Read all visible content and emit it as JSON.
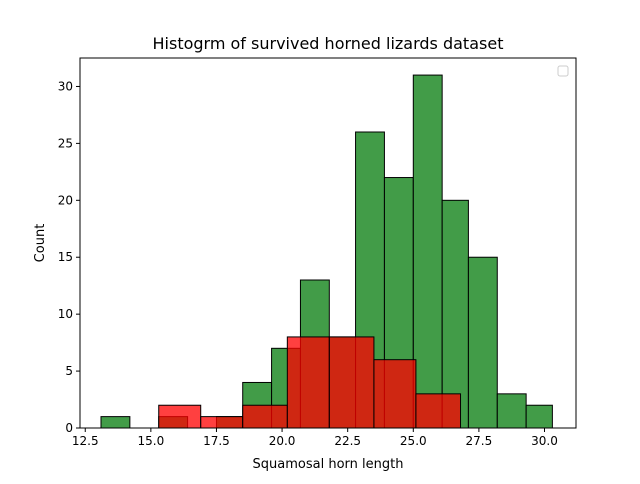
{
  "chart_data": {
    "type": "bar",
    "title": "Histogrm of survived horned lizards dataset",
    "xlabel": "Squamosal horn length",
    "ylabel": "Count",
    "xlim": [
      12.3,
      31.2
    ],
    "ylim": [
      0,
      32.5
    ],
    "xticks": [
      12.5,
      15.0,
      17.5,
      20.0,
      22.5,
      25.0,
      27.5,
      30.0
    ],
    "xtick_labels": [
      "12.5",
      "15.0",
      "17.5",
      "20.0",
      "22.5",
      "25.0",
      "27.5",
      "30.0"
    ],
    "yticks": [
      0,
      5,
      10,
      15,
      20,
      25,
      30
    ],
    "ytick_labels": [
      "0",
      "5",
      "10",
      "15",
      "20",
      "25",
      "30"
    ],
    "legend": {
      "placement": "upper-right",
      "entries": []
    },
    "series": [
      {
        "color": "#2e9134",
        "alpha": 0.9,
        "bins": [
          {
            "x0": 13.1,
            "x1": 14.2,
            "count": 1
          },
          {
            "x0": 15.3,
            "x1": 16.4,
            "count": 1
          },
          {
            "x0": 17.5,
            "x1": 18.5,
            "count": 1
          },
          {
            "x0": 18.5,
            "x1": 19.6,
            "count": 4
          },
          {
            "x0": 19.6,
            "x1": 20.7,
            "count": 7
          },
          {
            "x0": 20.7,
            "x1": 21.8,
            "count": 13
          },
          {
            "x0": 21.8,
            "x1": 22.8,
            "count": 8
          },
          {
            "x0": 22.8,
            "x1": 23.9,
            "count": 26
          },
          {
            "x0": 23.9,
            "x1": 25.0,
            "count": 22
          },
          {
            "x0": 25.0,
            "x1": 26.1,
            "count": 31
          },
          {
            "x0": 26.1,
            "x1": 27.1,
            "count": 20
          },
          {
            "x0": 27.1,
            "x1": 28.2,
            "count": 15
          },
          {
            "x0": 28.2,
            "x1": 29.3,
            "count": 3
          },
          {
            "x0": 29.3,
            "x1": 30.3,
            "count": 2
          }
        ]
      },
      {
        "color": "#ff0000",
        "alpha": 0.75,
        "bins": [
          {
            "x0": 15.3,
            "x1": 16.9,
            "count": 2
          },
          {
            "x0": 16.9,
            "x1": 18.5,
            "count": 1
          },
          {
            "x0": 18.5,
            "x1": 20.2,
            "count": 2
          },
          {
            "x0": 20.2,
            "x1": 21.8,
            "count": 8
          },
          {
            "x0": 21.8,
            "x1": 23.5,
            "count": 8
          },
          {
            "x0": 23.5,
            "x1": 25.1,
            "count": 6
          },
          {
            "x0": 25.1,
            "x1": 26.8,
            "count": 3
          }
        ]
      }
    ]
  }
}
